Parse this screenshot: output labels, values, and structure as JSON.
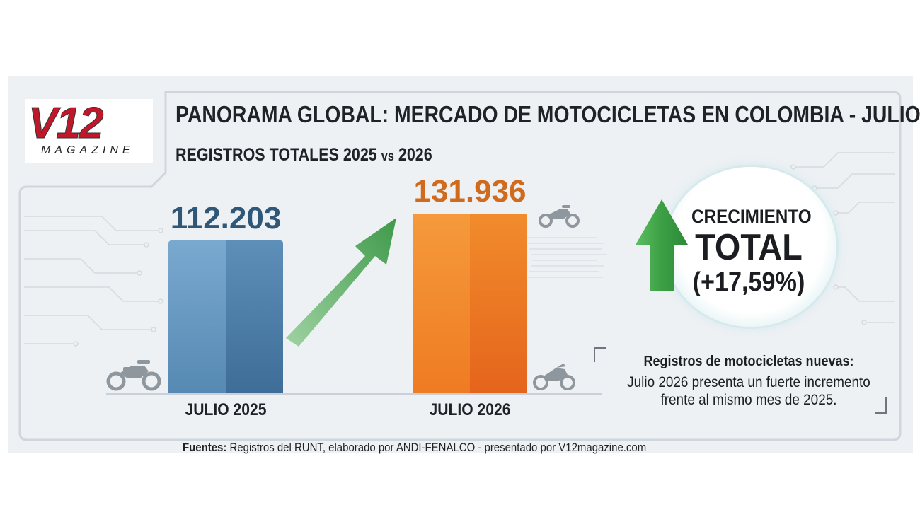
{
  "logo": {
    "brand": "V12",
    "sub": "MAGAZINE"
  },
  "header": {
    "title": "PANORAMA GLOBAL: MERCADO DE MOTOCICLETAS EN COLOMBIA - JULIO",
    "subtitle_main": "REGISTROS TOTALES 2025 ",
    "subtitle_vs": "vs",
    "subtitle_end": " 2026"
  },
  "chart_data": {
    "type": "bar",
    "categories": [
      "JULIO 2025",
      "JULIO 2026"
    ],
    "values": [
      112203,
      131936
    ],
    "value_labels": [
      "112.203",
      "131.936"
    ],
    "title": "",
    "xlabel": "",
    "ylabel": "",
    "colors": [
      "#5b8fb8",
      "#ef7a24"
    ],
    "label_colors": [
      "#2f5878",
      "#d06a1c"
    ]
  },
  "growth": {
    "line1": "CRECIMIENTO",
    "line2": "TOTAL",
    "line3": "(+17,59%)"
  },
  "note": {
    "title": "Registros de motocicletas nuevas:",
    "line1": "Julio 2026 presenta un fuerte incremento",
    "line2": "frente al mismo mes de 2025."
  },
  "sources": {
    "label": "Fuentes:",
    "text": " Registros del RUNT, elaborado por ANDI-FENALCO - presentado por V12magazine.com"
  },
  "icons": [
    "motorcycle-icon",
    "motorcycle-icon",
    "motorcycle-icon",
    "growth-arrow-icon",
    "up-arrow-icon"
  ]
}
